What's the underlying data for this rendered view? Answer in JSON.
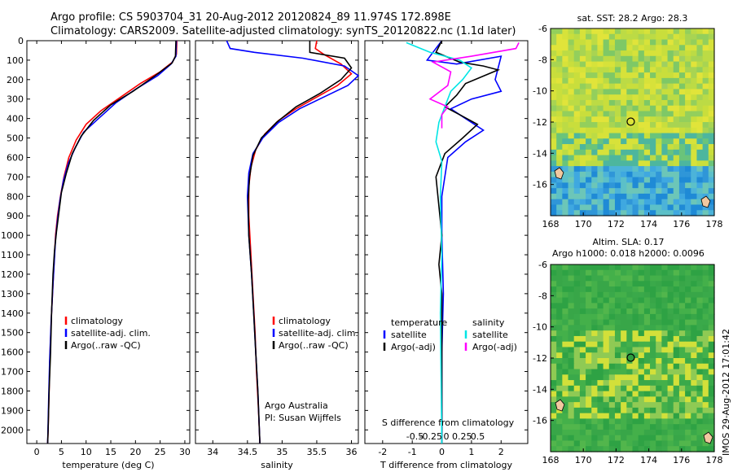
{
  "header": {
    "line1": "Argo profile: CS 5903704_31 20-Aug-2012 20120824_89 11.974S 172.898E",
    "line2": "Climatology: CARS2009. Satellite-adjusted climatology: synTS_20120822.nc (1.1d later)"
  },
  "side_label": "IMOS 29-Aug-2012 17:01:42",
  "colors": {
    "climatology": "#ff0000",
    "satellite": "#0000ff",
    "argo": "#000000",
    "sat_salinity": "#00e5e5",
    "argo_salinity": "#ff00ff"
  },
  "chart_data": [
    {
      "type": "line",
      "panel": "temperature",
      "xlabel": "temperature (deg C)",
      "ylabel": "",
      "xlim": [
        -2,
        31
      ],
      "ylim": [
        2070,
        0
      ],
      "xticks": [
        0,
        5,
        10,
        15,
        20,
        25,
        30
      ],
      "yticks": [
        0,
        100,
        200,
        300,
        400,
        500,
        600,
        700,
        800,
        900,
        1000,
        1100,
        1200,
        1300,
        1400,
        1500,
        1600,
        1700,
        1800,
        1900,
        2000
      ],
      "legend": [
        "climatology",
        "satellite-adj. clim.",
        "Argo(..raw -QC)"
      ],
      "series": [
        {
          "name": "climatology",
          "color": "#ff0000",
          "points": [
            [
              28.4,
              0
            ],
            [
              28.3,
              70
            ],
            [
              27.5,
              110
            ],
            [
              25,
              160
            ],
            [
              21,
              220
            ],
            [
              17,
              290
            ],
            [
              13,
              360
            ],
            [
              10,
              430
            ],
            [
              8,
              510
            ],
            [
              6.5,
              600
            ],
            [
              5.5,
              700
            ],
            [
              4.8,
              800
            ],
            [
              4.2,
              900
            ],
            [
              3.8,
              1000
            ],
            [
              3.4,
              1200
            ],
            [
              3.0,
              1400
            ],
            [
              2.7,
              1600
            ],
            [
              2.5,
              1800
            ],
            [
              2.3,
              2000
            ],
            [
              2.2,
              2070
            ]
          ]
        },
        {
          "name": "satellite-adj. clim.",
          "color": "#0000ff",
          "points": [
            [
              28.3,
              0
            ],
            [
              28.2,
              80
            ],
            [
              27.2,
              120
            ],
            [
              24.5,
              180
            ],
            [
              20,
              250
            ],
            [
              16,
              320
            ],
            [
              12.5,
              400
            ],
            [
              9.5,
              470
            ],
            [
              7.8,
              550
            ],
            [
              6.4,
              630
            ],
            [
              5.4,
              720
            ],
            [
              4.7,
              820
            ],
            [
              4.2,
              920
            ],
            [
              3.8,
              1020
            ],
            [
              3.3,
              1250
            ],
            [
              2.9,
              1450
            ],
            [
              2.6,
              1650
            ],
            [
              2.4,
              1850
            ],
            [
              2.2,
              2070
            ]
          ]
        },
        {
          "name": "Argo(..raw -QC)",
          "color": "#000000",
          "points": [
            [
              28.2,
              0
            ],
            [
              28.1,
              80
            ],
            [
              27.4,
              115
            ],
            [
              24,
              180
            ],
            [
              19.5,
              260
            ],
            [
              15,
              330
            ],
            [
              11.5,
              410
            ],
            [
              9,
              490
            ],
            [
              7.2,
              580
            ],
            [
              6.0,
              680
            ],
            [
              5.0,
              780
            ],
            [
              4.5,
              880
            ],
            [
              4.0,
              980
            ],
            [
              3.6,
              1080
            ],
            [
              3.3,
              1200
            ],
            [
              3.0,
              1400
            ],
            [
              2.8,
              1600
            ],
            [
              2.5,
              1800
            ],
            [
              2.3,
              2000
            ],
            [
              2.2,
              2070
            ]
          ]
        }
      ]
    },
    {
      "type": "line",
      "panel": "salinity",
      "xlabel": "salinity",
      "xlim": [
        33.75,
        36.1
      ],
      "ylim": [
        2070,
        0
      ],
      "xticks": [
        34,
        34.5,
        35,
        35.5,
        36
      ],
      "xticklabels": [
        "34",
        "34.5",
        "35",
        "35.5",
        "36"
      ],
      "legend": [
        "climatology",
        "satellite-adj. clim.",
        "Argo(..raw -QC)"
      ],
      "annotation": [
        "Argo Australia",
        "PI: Susan Wijffels"
      ],
      "series": [
        {
          "name": "climatology",
          "color": "#ff0000",
          "points": [
            [
              35.5,
              0
            ],
            [
              35.48,
              40
            ],
            [
              35.6,
              70
            ],
            [
              35.85,
              120
            ],
            [
              36.0,
              170
            ],
            [
              35.8,
              230
            ],
            [
              35.5,
              290
            ],
            [
              35.2,
              350
            ],
            [
              34.95,
              410
            ],
            [
              34.75,
              480
            ],
            [
              34.62,
              560
            ],
            [
              34.55,
              650
            ],
            [
              34.52,
              750
            ],
            [
              34.52,
              900
            ],
            [
              34.55,
              1100
            ],
            [
              34.58,
              1300
            ],
            [
              34.61,
              1500
            ],
            [
              34.63,
              1700
            ],
            [
              34.66,
              1900
            ],
            [
              34.68,
              2070
            ]
          ]
        },
        {
          "name": "satellite-adj. clim.",
          "color": "#0000ff",
          "points": [
            [
              34.2,
              0
            ],
            [
              34.25,
              40
            ],
            [
              34.6,
              60
            ],
            [
              35.3,
              90
            ],
            [
              35.9,
              130
            ],
            [
              36.1,
              180
            ],
            [
              35.95,
              230
            ],
            [
              35.6,
              290
            ],
            [
              35.25,
              350
            ],
            [
              34.95,
              420
            ],
            [
              34.72,
              500
            ],
            [
              34.58,
              580
            ],
            [
              34.52,
              680
            ],
            [
              34.5,
              800
            ],
            [
              34.52,
              1000
            ],
            [
              34.56,
              1200
            ],
            [
              34.59,
              1400
            ],
            [
              34.62,
              1600
            ],
            [
              34.65,
              1800
            ],
            [
              34.68,
              2070
            ]
          ]
        },
        {
          "name": "Argo(..raw -QC)",
          "color": "#000000",
          "points": [
            [
              35.4,
              0
            ],
            [
              35.4,
              60
            ],
            [
              35.9,
              90
            ],
            [
              36.0,
              140
            ],
            [
              35.85,
              200
            ],
            [
              35.55,
              270
            ],
            [
              35.2,
              340
            ],
            [
              34.92,
              420
            ],
            [
              34.7,
              500
            ],
            [
              34.58,
              590
            ],
            [
              34.53,
              700
            ],
            [
              34.51,
              820
            ],
            [
              34.52,
              1000
            ],
            [
              34.56,
              1200
            ],
            [
              34.59,
              1400
            ],
            [
              34.62,
              1600
            ],
            [
              34.65,
              1800
            ],
            [
              34.68,
              2070
            ]
          ]
        }
      ]
    },
    {
      "type": "line",
      "panel": "differences",
      "xlabel": "T difference from climatology",
      "xlabel_top": "S difference from climatology",
      "xlim": [
        -2.6,
        2.9
      ],
      "ylim": [
        2070,
        0
      ],
      "xticks": [
        -2,
        -1,
        0,
        1,
        2
      ],
      "xticklabels": [
        "-2",
        "-1",
        "0",
        "1",
        "2"
      ],
      "sticks": [
        -0.5,
        -0.25,
        0,
        0.25,
        0.5
      ],
      "sticklabels": [
        "-0.5",
        "-0.25",
        "0",
        "0.25",
        "0.5"
      ],
      "legend_temperature": [
        "temperature",
        "satellite",
        "Argo(-adj)"
      ],
      "legend_salinity": [
        "salinity",
        "satellite",
        "Argo(-adj)"
      ],
      "series": [
        {
          "name": "satellite",
          "color": "#0000ff",
          "points": [
            [
              0,
              0
            ],
            [
              -0.3,
              60
            ],
            [
              -0.5,
              100
            ],
            [
              0.5,
              120
            ],
            [
              2.0,
              80
            ],
            [
              1.8,
              200
            ],
            [
              2.0,
              260
            ],
            [
              1.0,
              300
            ],
            [
              0.3,
              350
            ],
            [
              0.8,
              400
            ],
            [
              1.4,
              460
            ],
            [
              0.8,
              520
            ],
            [
              0.2,
              600
            ],
            [
              0.0,
              800
            ],
            [
              0.0,
              1000
            ],
            [
              0.05,
              1300
            ],
            [
              0,
              1600
            ],
            [
              0,
              2070
            ]
          ]
        },
        {
          "name": "Argo(-adj)",
          "color": "#000000",
          "points": [
            [
              0,
              0
            ],
            [
              -0.2,
              60
            ],
            [
              0.6,
              110
            ],
            [
              1.4,
              130
            ],
            [
              1.9,
              150
            ],
            [
              0.8,
              220
            ],
            [
              0.5,
              280
            ],
            [
              0.1,
              340
            ],
            [
              0.6,
              380
            ],
            [
              1.2,
              430
            ],
            [
              0.7,
              500
            ],
            [
              0.1,
              580
            ],
            [
              -0.2,
              700
            ],
            [
              -0.1,
              850
            ],
            [
              0,
              1000
            ],
            [
              -0.1,
              1150
            ],
            [
              0,
              1300
            ],
            [
              0,
              2070
            ]
          ]
        },
        {
          "name": "S satellite",
          "color": "#00e5e5",
          "points": [
            [
              -1.2,
              10
            ],
            [
              -0.4,
              60
            ],
            [
              0.6,
              100
            ],
            [
              1.0,
              140
            ],
            [
              0.7,
              200
            ],
            [
              0.3,
              260
            ],
            [
              0.1,
              340
            ],
            [
              -0.1,
              420
            ],
            [
              -0.2,
              520
            ],
            [
              0.0,
              620
            ],
            [
              -0.05,
              800
            ],
            [
              0,
              1100
            ],
            [
              -0.05,
              1400
            ],
            [
              0,
              2070
            ]
          ]
        },
        {
          "name": "S Argo(-adj)",
          "color": "#ff00ff",
          "points": [
            [
              2.6,
              10
            ],
            [
              2.5,
              40
            ],
            [
              1.0,
              80
            ],
            [
              -0.3,
              110
            ],
            [
              0.3,
              160
            ],
            [
              0.2,
              230
            ],
            [
              -0.4,
              300
            ],
            [
              0.2,
              340
            ],
            [
              0.0,
              380
            ],
            [
              0,
              450
            ]
          ]
        }
      ]
    },
    {
      "type": "heatmap",
      "panel": "sst_map",
      "title": "sat. SST: 28.2 Argo: 28.3",
      "xlim": [
        168,
        178
      ],
      "ylim": [
        -18,
        -6
      ],
      "xticks": [
        168,
        170,
        172,
        174,
        176,
        178
      ],
      "yticks": [
        -6,
        -8,
        -10,
        -12,
        -14,
        -16
      ],
      "marker": {
        "lon": 172.898,
        "lat": -11.974
      }
    },
    {
      "type": "heatmap",
      "panel": "sla_map",
      "title": "Altim. SLA: 0.17",
      "subtitle": "Argo h1000: 0.018 h2000: 0.0096",
      "xlim": [
        168,
        178
      ],
      "ylim": [
        -18,
        -6
      ],
      "xticks": [
        168,
        170,
        172,
        174,
        176,
        178
      ],
      "yticks": [
        -6,
        -8,
        -10,
        -12,
        -14,
        -16
      ],
      "marker": {
        "lon": 172.898,
        "lat": -11.974
      }
    }
  ]
}
